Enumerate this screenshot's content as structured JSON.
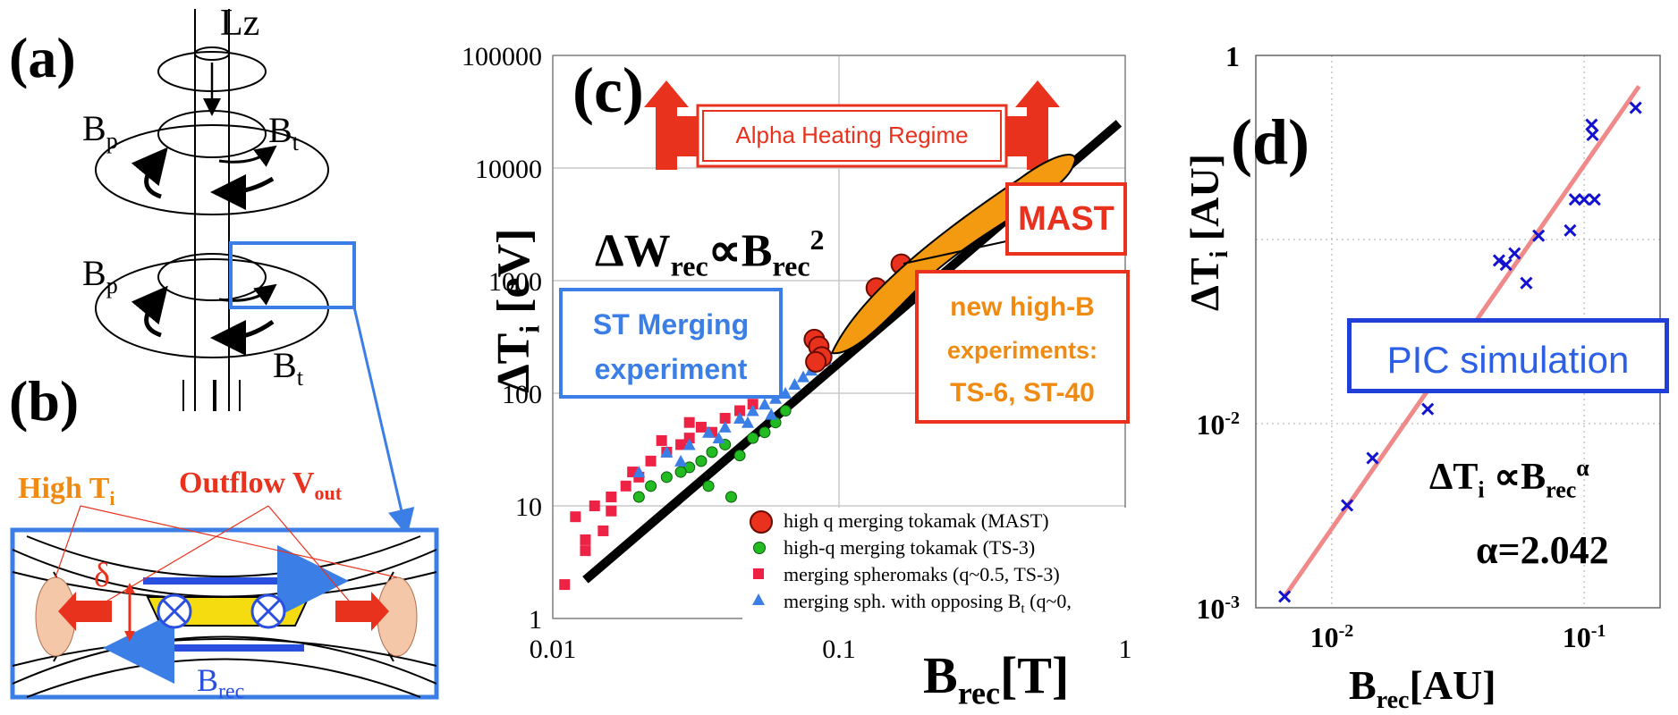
{
  "panels": {
    "a": {
      "label": "(a)",
      "torque_label": "Lz",
      "bp_top": "B",
      "bp_top_sub": "p",
      "bt_top": "B",
      "bt_top_sub": "t",
      "bp_bottom": "B",
      "bp_bottom_sub": "p",
      "bt_bottom": "B",
      "bt_bottom_sub": "t"
    },
    "b": {
      "label": "(b)",
      "high_t": "High T",
      "high_t_sub": "i",
      "outflow": "Outflow V",
      "outflow_sub": "out",
      "delta": "δ",
      "brec": "B",
      "brec_sub": "rec"
    },
    "c": {
      "label": "(c)",
      "alpha_banner": "Alpha Heating Regime",
      "scaling_main": "ΔW",
      "scaling_sub1": "rec",
      "scaling_mid": "∝B",
      "scaling_sub2": "rec",
      "scaling_sup": "2",
      "mast_box": "MAST",
      "st_box_line1": "ST Merging",
      "st_box_line2": "experiment",
      "newhb_line1": "new high-B",
      "newhb_line2": "experiments:",
      "newhb_line3": "TS-6, ST-40",
      "ylabel_main": "ΔT",
      "ylabel_sub": "i",
      "ylabel_unit": " [eV]",
      "xlabel_main": "B",
      "xlabel_sub": "rec",
      "xlabel_unit": "[T]",
      "legend": [
        "high q merging tokamak (MAST)",
        "high-q merging tokamak (TS-3)",
        "merging spheromaks (q~0.5, TS-3)",
        "merging sph. with opposing B"
      ],
      "legend_last_sub": "t",
      "legend_last_tail": " (q~0,"
    },
    "d": {
      "label": "(d)",
      "pic_box": "PIC simulation",
      "ylabel_main": "ΔT",
      "ylabel_sub": "i",
      "ylabel_unit": " [AU]",
      "xlabel_main": "B",
      "xlabel_sub": "rec",
      "xlabel_unit": "[AU]",
      "fit_main": "ΔT",
      "fit_sub1": "i",
      "fit_mid": " ∝B",
      "fit_sub2": "rec",
      "fit_sup": "α",
      "alpha_value": "α=2.042"
    }
  },
  "colors": {
    "red": "#e8321e",
    "blue_box": "#3b7fe6",
    "orange": "#f08a10",
    "pic_blue": "#1f3fd8",
    "fit_line": "#f08a8a",
    "marker_blue": "#1212d0"
  },
  "chart_data": [
    {
      "type": "scatter",
      "panel": "c",
      "x_scale": "log",
      "y_scale": "log",
      "xlim": [
        0.01,
        1
      ],
      "ylim": [
        1,
        100000
      ],
      "x_ticks": [
        "0.01",
        "0.1",
        "1"
      ],
      "y_ticks": [
        "1",
        "10",
        "100",
        "1000",
        "10000",
        "100000"
      ],
      "grid": true,
      "legend_position": "bottom-right",
      "trend_line": {
        "x": [
          0.013,
          0.95
        ],
        "y": [
          2.2,
          25000
        ]
      },
      "series": [
        {
          "name": "high q merging tokamak (MAST)",
          "marker": "circle",
          "color": "#e8321e",
          "x": [
            0.082,
            0.085,
            0.087,
            0.083,
            0.135,
            0.165
          ],
          "y": [
            300,
            260,
            210,
            190,
            860,
            1400
          ]
        },
        {
          "name": "high-q merging tokamak (TS-3)",
          "marker": "circle-small",
          "color": "#22bb22",
          "x": [
            0.02,
            0.022,
            0.025,
            0.03,
            0.033,
            0.036,
            0.04,
            0.045,
            0.05,
            0.055,
            0.06,
            0.065,
            0.028,
            0.035,
            0.042
          ],
          "y": [
            12,
            15,
            18,
            22,
            25,
            30,
            35,
            28,
            40,
            45,
            55,
            70,
            20,
            15,
            12
          ]
        },
        {
          "name": "merging spheromaks (q~0.5, TS-3)",
          "marker": "square",
          "color": "#ee2244",
          "x": [
            0.011,
            0.012,
            0.013,
            0.014,
            0.015,
            0.016,
            0.018,
            0.02,
            0.022,
            0.025,
            0.028,
            0.03,
            0.033,
            0.036,
            0.04,
            0.045,
            0.05,
            0.013,
            0.016,
            0.019,
            0.024,
            0.03
          ],
          "y": [
            2,
            8,
            5,
            10,
            6,
            12,
            15,
            18,
            25,
            30,
            35,
            40,
            50,
            45,
            60,
            70,
            80,
            4,
            9,
            20,
            38,
            55
          ]
        },
        {
          "name": "merging sph. with opposing Bt (q~0,",
          "marker": "triangle",
          "color": "#3b7fe6",
          "x": [
            0.02,
            0.025,
            0.03,
            0.035,
            0.04,
            0.045,
            0.05,
            0.055,
            0.06,
            0.065,
            0.07,
            0.075,
            0.08,
            0.09,
            0.028,
            0.038,
            0.048,
            0.058
          ],
          "y": [
            20,
            30,
            35,
            45,
            50,
            60,
            70,
            80,
            90,
            100,
            120,
            140,
            160,
            200,
            25,
            40,
            55,
            65
          ]
        }
      ]
    },
    {
      "type": "scatter",
      "panel": "d",
      "x_scale": "log",
      "y_scale": "log",
      "xlim": [
        0.005,
        0.2
      ],
      "ylim": [
        0.001,
        1
      ],
      "x_ticks": [
        "10",
        "10"
      ],
      "x_tick_exponents": [
        "-2",
        "-1"
      ],
      "y_ticks": [
        "1",
        "10",
        "10"
      ],
      "y_tick_exponents": [
        "",
        "-2",
        "-3"
      ],
      "grid": true,
      "fit": {
        "alpha": 2.042,
        "x": [
          0.0065,
          0.165
        ],
        "y": [
          0.00115,
          0.68
        ]
      },
      "series": [
        {
          "name": "",
          "marker": "x",
          "color": "#1212d0",
          "x": [
            0.0065,
            0.0115,
            0.0145,
            0.024,
            0.046,
            0.049,
            0.053,
            0.059,
            0.066,
            0.088,
            0.092,
            0.1,
            0.107,
            0.108,
            0.11,
            0.16
          ],
          "y": [
            0.00115,
            0.0036,
            0.0065,
            0.012,
            0.077,
            0.073,
            0.084,
            0.058,
            0.105,
            0.112,
            0.165,
            0.165,
            0.42,
            0.37,
            0.165,
            0.52
          ]
        }
      ]
    }
  ]
}
